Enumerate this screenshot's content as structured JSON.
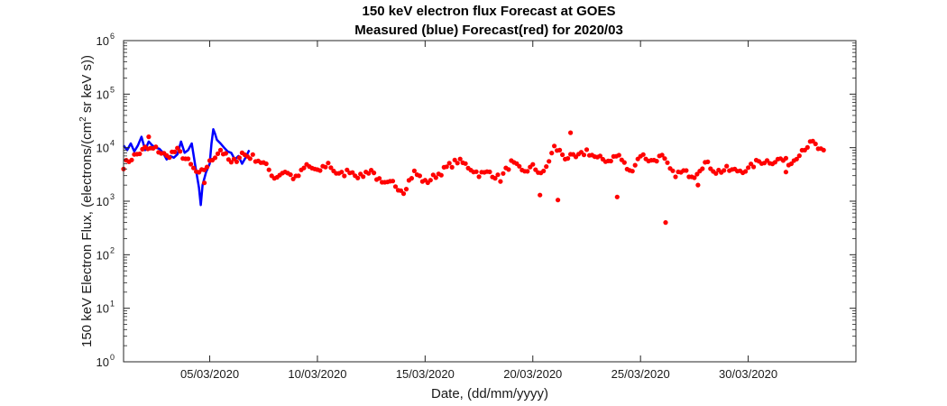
{
  "chart_data": {
    "type": "scatter",
    "title": "150 keV electron flux Forecast at GOES",
    "subtitle": "Measured (blue) Forecast(red) for 2020/03",
    "xlabel": "Date, (dd/mm/yyyy)",
    "ylabel": "150 keV Electron Flux, (electrons/(cm² sr keV s))",
    "ylabel_parts": [
      "150 keV Electron Flux, (electrons/(cm",
      "2",
      " sr keV s))"
    ],
    "yscale": "log",
    "ylim": [
      1,
      1000000
    ],
    "xlim": [
      "2020-03-01T00:00",
      "2020-04-04T00:00"
    ],
    "grid": false,
    "x_ticks": [
      {
        "date": "2020-03-05",
        "label": "05/03/2020"
      },
      {
        "date": "2020-03-10",
        "label": "10/03/2020"
      },
      {
        "date": "2020-03-15",
        "label": "15/03/2020"
      },
      {
        "date": "2020-03-20",
        "label": "20/03/2020"
      },
      {
        "date": "2020-03-25",
        "label": "25/03/2020"
      },
      {
        "date": "2020-03-30",
        "label": "30/03/2020"
      }
    ],
    "y_ticks": [
      {
        "value": 1,
        "base": "10",
        "exp": "0"
      },
      {
        "value": 10,
        "base": "10",
        "exp": "1"
      },
      {
        "value": 100,
        "base": "10",
        "exp": "2"
      },
      {
        "value": 1000,
        "base": "10",
        "exp": "3"
      },
      {
        "value": 10000,
        "base": "10",
        "exp": "4"
      },
      {
        "value": 100000,
        "base": "10",
        "exp": "5"
      },
      {
        "value": 1000000,
        "base": "10",
        "exp": "6"
      }
    ],
    "series": [
      {
        "color": "#0000ff",
        "style": "line",
        "points": [
          [
            "2020-03-01T00:00",
            11000
          ],
          [
            "2020-03-01T04:00",
            9000
          ],
          [
            "2020-03-01T08:00",
            12000
          ],
          [
            "2020-03-01T12:00",
            8500
          ],
          [
            "2020-03-01T16:00",
            11000
          ],
          [
            "2020-03-01T20:00",
            16000
          ],
          [
            "2020-03-02T00:00",
            9000
          ],
          [
            "2020-03-02T04:00",
            13000
          ],
          [
            "2020-03-02T08:00",
            11000
          ],
          [
            "2020-03-02T12:00",
            10000
          ],
          [
            "2020-03-02T16:00",
            9500
          ],
          [
            "2020-03-02T20:00",
            8000
          ],
          [
            "2020-03-03T00:00",
            6000
          ],
          [
            "2020-03-03T04:00",
            7000
          ],
          [
            "2020-03-03T08:00",
            6500
          ],
          [
            "2020-03-03T12:00",
            7500
          ],
          [
            "2020-03-03T16:00",
            13000
          ],
          [
            "2020-03-03T20:00",
            8000
          ],
          [
            "2020-03-04T00:00",
            9000
          ],
          [
            "2020-03-04T04:00",
            12000
          ],
          [
            "2020-03-04T08:00",
            4500
          ],
          [
            "2020-03-04T12:00",
            1800
          ],
          [
            "2020-03-04T14:00",
            850
          ],
          [
            "2020-03-04T16:00",
            2000
          ],
          [
            "2020-03-04T20:00",
            3500
          ],
          [
            "2020-03-05T00:00",
            5000
          ],
          [
            "2020-03-05T02:00",
            12000
          ],
          [
            "2020-03-05T04:00",
            22000
          ],
          [
            "2020-03-05T06:00",
            18000
          ],
          [
            "2020-03-05T08:00",
            14000
          ],
          [
            "2020-03-05T12:00",
            12000
          ],
          [
            "2020-03-05T16:00",
            10000
          ],
          [
            "2020-03-05T20:00",
            8500
          ],
          [
            "2020-03-06T00:00",
            8000
          ],
          [
            "2020-03-06T04:00",
            6000
          ],
          [
            "2020-03-06T08:00",
            7000
          ],
          [
            "2020-03-06T12:00",
            5000
          ],
          [
            "2020-03-06T16:00",
            6500
          ],
          [
            "2020-03-06T20:00",
            9000
          ]
        ]
      },
      {
        "color": "#ff0000",
        "style": "dots",
        "base_points": [
          [
            "2020-03-01T00:00",
            4000
          ],
          [
            "2020-03-01T12:00",
            7000
          ],
          [
            "2020-03-02T00:00",
            11000
          ],
          [
            "2020-03-02T12:00",
            10000
          ],
          [
            "2020-03-03T00:00",
            6000
          ],
          [
            "2020-03-03T12:00",
            8000
          ],
          [
            "2020-03-04T00:00",
            6000
          ],
          [
            "2020-03-04T12:00",
            3500
          ],
          [
            "2020-03-05T00:00",
            5000
          ],
          [
            "2020-03-05T12:00",
            8000
          ],
          [
            "2020-03-06T00:00",
            5000
          ],
          [
            "2020-03-06T12:00",
            9000
          ],
          [
            "2020-03-07T00:00",
            7000
          ],
          [
            "2020-03-07T12:00",
            4500
          ],
          [
            "2020-03-08T00:00",
            2500
          ],
          [
            "2020-03-08T12:00",
            4000
          ],
          [
            "2020-03-09T00:00",
            3000
          ],
          [
            "2020-03-09T12:00",
            4500
          ],
          [
            "2020-03-10T00:00",
            3000
          ],
          [
            "2020-03-10T12:00",
            5000
          ],
          [
            "2020-03-11T00:00",
            3500
          ],
          [
            "2020-03-11T12:00",
            4000
          ],
          [
            "2020-03-12T00:00",
            2500
          ],
          [
            "2020-03-12T12:00",
            3500
          ],
          [
            "2020-03-13T00:00",
            2200
          ],
          [
            "2020-03-13T12:00",
            2500
          ],
          [
            "2020-03-14T00:00",
            1500
          ],
          [
            "2020-03-14T12:00",
            3000
          ],
          [
            "2020-03-15T00:00",
            2200
          ],
          [
            "2020-03-15T12:00",
            3500
          ],
          [
            "2020-03-16T00:00",
            4500
          ],
          [
            "2020-03-16T12:00",
            5000
          ],
          [
            "2020-03-17T00:00",
            4000
          ],
          [
            "2020-03-17T12:00",
            3500
          ],
          [
            "2020-03-18T00:00",
            4000
          ],
          [
            "2020-03-18T12:00",
            2500
          ],
          [
            "2020-03-19T00:00",
            4500
          ],
          [
            "2020-03-19T12:00",
            3500
          ],
          [
            "2020-03-20T00:00",
            5000
          ],
          [
            "2020-03-20T12:00",
            3500
          ],
          [
            "2020-03-21T00:00",
            9000
          ],
          [
            "2020-03-21T12:00",
            6000
          ],
          [
            "2020-03-22T00:00",
            7000
          ],
          [
            "2020-03-22T12:00",
            10000
          ],
          [
            "2020-03-23T00:00",
            6000
          ],
          [
            "2020-03-23T12:00",
            5000
          ],
          [
            "2020-03-24T00:00",
            7000
          ],
          [
            "2020-03-24T12:00",
            4000
          ],
          [
            "2020-03-25T00:00",
            8000
          ],
          [
            "2020-03-25T12:00",
            5000
          ],
          [
            "2020-03-26T00:00",
            6000
          ],
          [
            "2020-03-26T12:00",
            3500
          ],
          [
            "2020-03-27T00:00",
            4000
          ],
          [
            "2020-03-27T12:00",
            3000
          ],
          [
            "2020-03-28T00:00",
            4500
          ],
          [
            "2020-03-28T12:00",
            3500
          ],
          [
            "2020-03-29T00:00",
            4500
          ],
          [
            "2020-03-29T12:00",
            4000
          ],
          [
            "2020-03-30T00:00",
            3500
          ],
          [
            "2020-03-30T12:00",
            5000
          ],
          [
            "2020-03-31T00:00",
            6000
          ],
          [
            "2020-03-31T12:00",
            7000
          ],
          [
            "2020-04-01T00:00",
            5000
          ],
          [
            "2020-04-01T12:00",
            8000
          ],
          [
            "2020-04-02T00:00",
            12000
          ],
          [
            "2020-04-02T12:00",
            9000
          ]
        ],
        "outliers": [
          [
            "2020-03-02T04:00",
            16000
          ],
          [
            "2020-03-04T18:00",
            2200
          ],
          [
            "2020-03-20T08:00",
            1300
          ],
          [
            "2020-03-21T04:00",
            1050
          ],
          [
            "2020-03-21T18:00",
            19000
          ],
          [
            "2020-03-23T22:00",
            1200
          ],
          [
            "2020-03-26T04:00",
            400
          ],
          [
            "2020-03-27T16:00",
            2000
          ],
          [
            "2020-03-31T18:00",
            3500
          ]
        ]
      }
    ]
  }
}
